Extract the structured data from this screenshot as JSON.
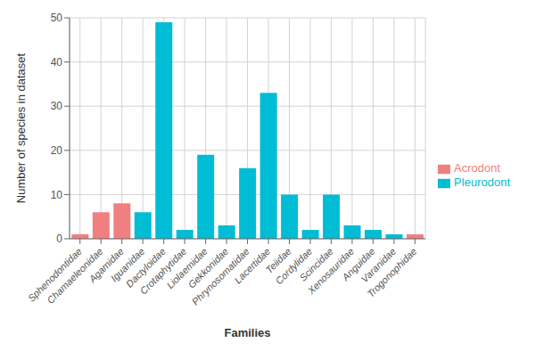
{
  "chart_data": {
    "type": "bar",
    "xlabel": "Families",
    "ylabel": "Number of species in dataset",
    "categories": [
      "Sphenodontidae",
      "Chamaeleonidae",
      "Agamidae",
      "Iguanidae",
      "Dactyloidae",
      "Crotaphytidae",
      "Liolaemidae",
      "Gekkonidae",
      "Phrynosomatidae",
      "Lacertidae",
      "Teiidae",
      "Cordylidae",
      "Scincidae",
      "Xenosauridae",
      "Anguidae",
      "Varanidae",
      "Trogonophidae"
    ],
    "series": [
      {
        "name": "Acrodont",
        "color": "#F08080",
        "values": [
          1,
          6,
          8,
          null,
          null,
          null,
          null,
          null,
          null,
          null,
          null,
          null,
          null,
          null,
          null,
          null,
          1
        ]
      },
      {
        "name": "Pleurodont",
        "color": "#00BCD4",
        "values": [
          null,
          null,
          null,
          6,
          49,
          2,
          19,
          3,
          16,
          33,
          10,
          2,
          10,
          3,
          2,
          1,
          null
        ]
      }
    ],
    "stacked": true,
    "ylim": [
      0,
      50
    ],
    "yticks": [
      0,
      10,
      20,
      30,
      40,
      50
    ],
    "grid": true,
    "legend": "right"
  }
}
